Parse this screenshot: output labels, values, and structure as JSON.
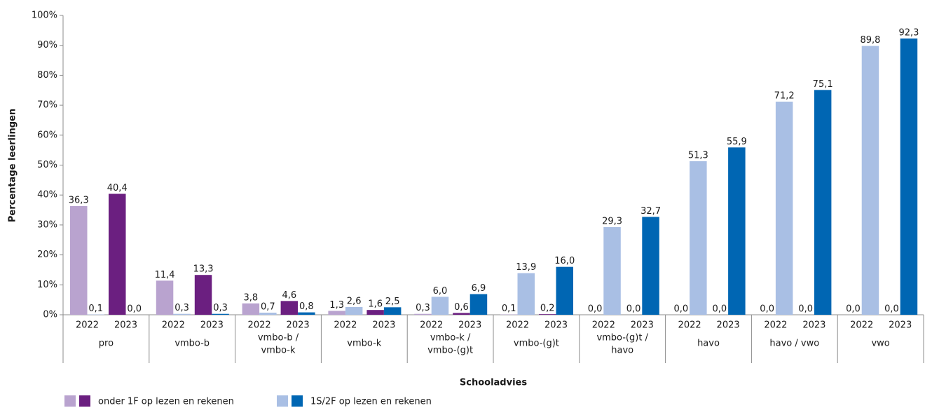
{
  "chart_data": {
    "type": "grouped-bar",
    "x_label": "Schooladvies",
    "y_label": "Percentage leerlingen",
    "categories": [
      [
        "pro"
      ],
      [
        "vmbo-b"
      ],
      [
        "vmbo-b /",
        "vmbo-k"
      ],
      [
        "vmbo-k"
      ],
      [
        "vmbo-k /",
        "vmbo-(g)t"
      ],
      [
        "vmbo-(g)t"
      ],
      [
        "vmbo-(g)t /",
        "havo"
      ],
      [
        "havo"
      ],
      [
        "havo / vwo"
      ],
      [
        "vwo"
      ]
    ],
    "years": [
      "2022",
      "2023"
    ],
    "series": [
      {
        "name": "onder 1F op lezen en rekenen",
        "colors": [
          "#b9a3cf",
          "#6b1f80"
        ],
        "values": [
          [
            36.3,
            40.4
          ],
          [
            11.4,
            13.3
          ],
          [
            3.8,
            4.6
          ],
          [
            1.3,
            1.6
          ],
          [
            0.3,
            0.6
          ],
          [
            0.1,
            0.2
          ],
          [
            0.0,
            0.0
          ],
          [
            0.0,
            0.0
          ],
          [
            0.0,
            0.0
          ],
          [
            0.0,
            0.0
          ]
        ],
        "value_labels": [
          [
            "36,3",
            "40,4"
          ],
          [
            "11,4",
            "13,3"
          ],
          [
            "3,8",
            "4,6"
          ],
          [
            "1,3",
            "1,6"
          ],
          [
            "0,3",
            "0,6"
          ],
          [
            "0,1",
            "0,2"
          ],
          [
            "0,0",
            "0,0"
          ],
          [
            "0,0",
            "0,0"
          ],
          [
            "0,0",
            "0,0"
          ],
          [
            "0,0",
            "0,0"
          ]
        ]
      },
      {
        "name": "1S/2F op lezen en rekenen",
        "colors": [
          "#a9bfe4",
          "#0066b3"
        ],
        "values": [
          [
            0.1,
            0.0
          ],
          [
            0.3,
            0.3
          ],
          [
            0.7,
            0.8
          ],
          [
            2.6,
            2.5
          ],
          [
            6.0,
            6.9
          ],
          [
            13.9,
            16.0
          ],
          [
            29.3,
            32.7
          ],
          [
            51.3,
            55.9
          ],
          [
            71.2,
            75.1
          ],
          [
            89.8,
            92.3
          ]
        ],
        "value_labels": [
          [
            "0,1",
            "0,0"
          ],
          [
            "0,3",
            "0,3"
          ],
          [
            "0,7",
            "0,8"
          ],
          [
            "2,6",
            "2,5"
          ],
          [
            "6,0",
            "6,9"
          ],
          [
            "13,9",
            "16,0"
          ],
          [
            "29,3",
            "32,7"
          ],
          [
            "51,3",
            "55,9"
          ],
          [
            "71,2",
            "75,1"
          ],
          [
            "89,8",
            "92,3"
          ]
        ]
      }
    ],
    "ylim": [
      0,
      100
    ],
    "yticks": [
      {
        "value": 0,
        "label": "0%"
      },
      {
        "value": 10,
        "label": "10%"
      },
      {
        "value": 20,
        "label": "20%"
      },
      {
        "value": 30,
        "label": "30%"
      },
      {
        "value": 40,
        "label": "40%"
      },
      {
        "value": 50,
        "label": "50%"
      },
      {
        "value": 60,
        "label": "60%"
      },
      {
        "value": 70,
        "label": "70%"
      },
      {
        "value": 80,
        "label": "80%"
      },
      {
        "value": 90,
        "label": "90%"
      },
      {
        "value": 100,
        "label": "100%"
      }
    ],
    "grid": false
  }
}
